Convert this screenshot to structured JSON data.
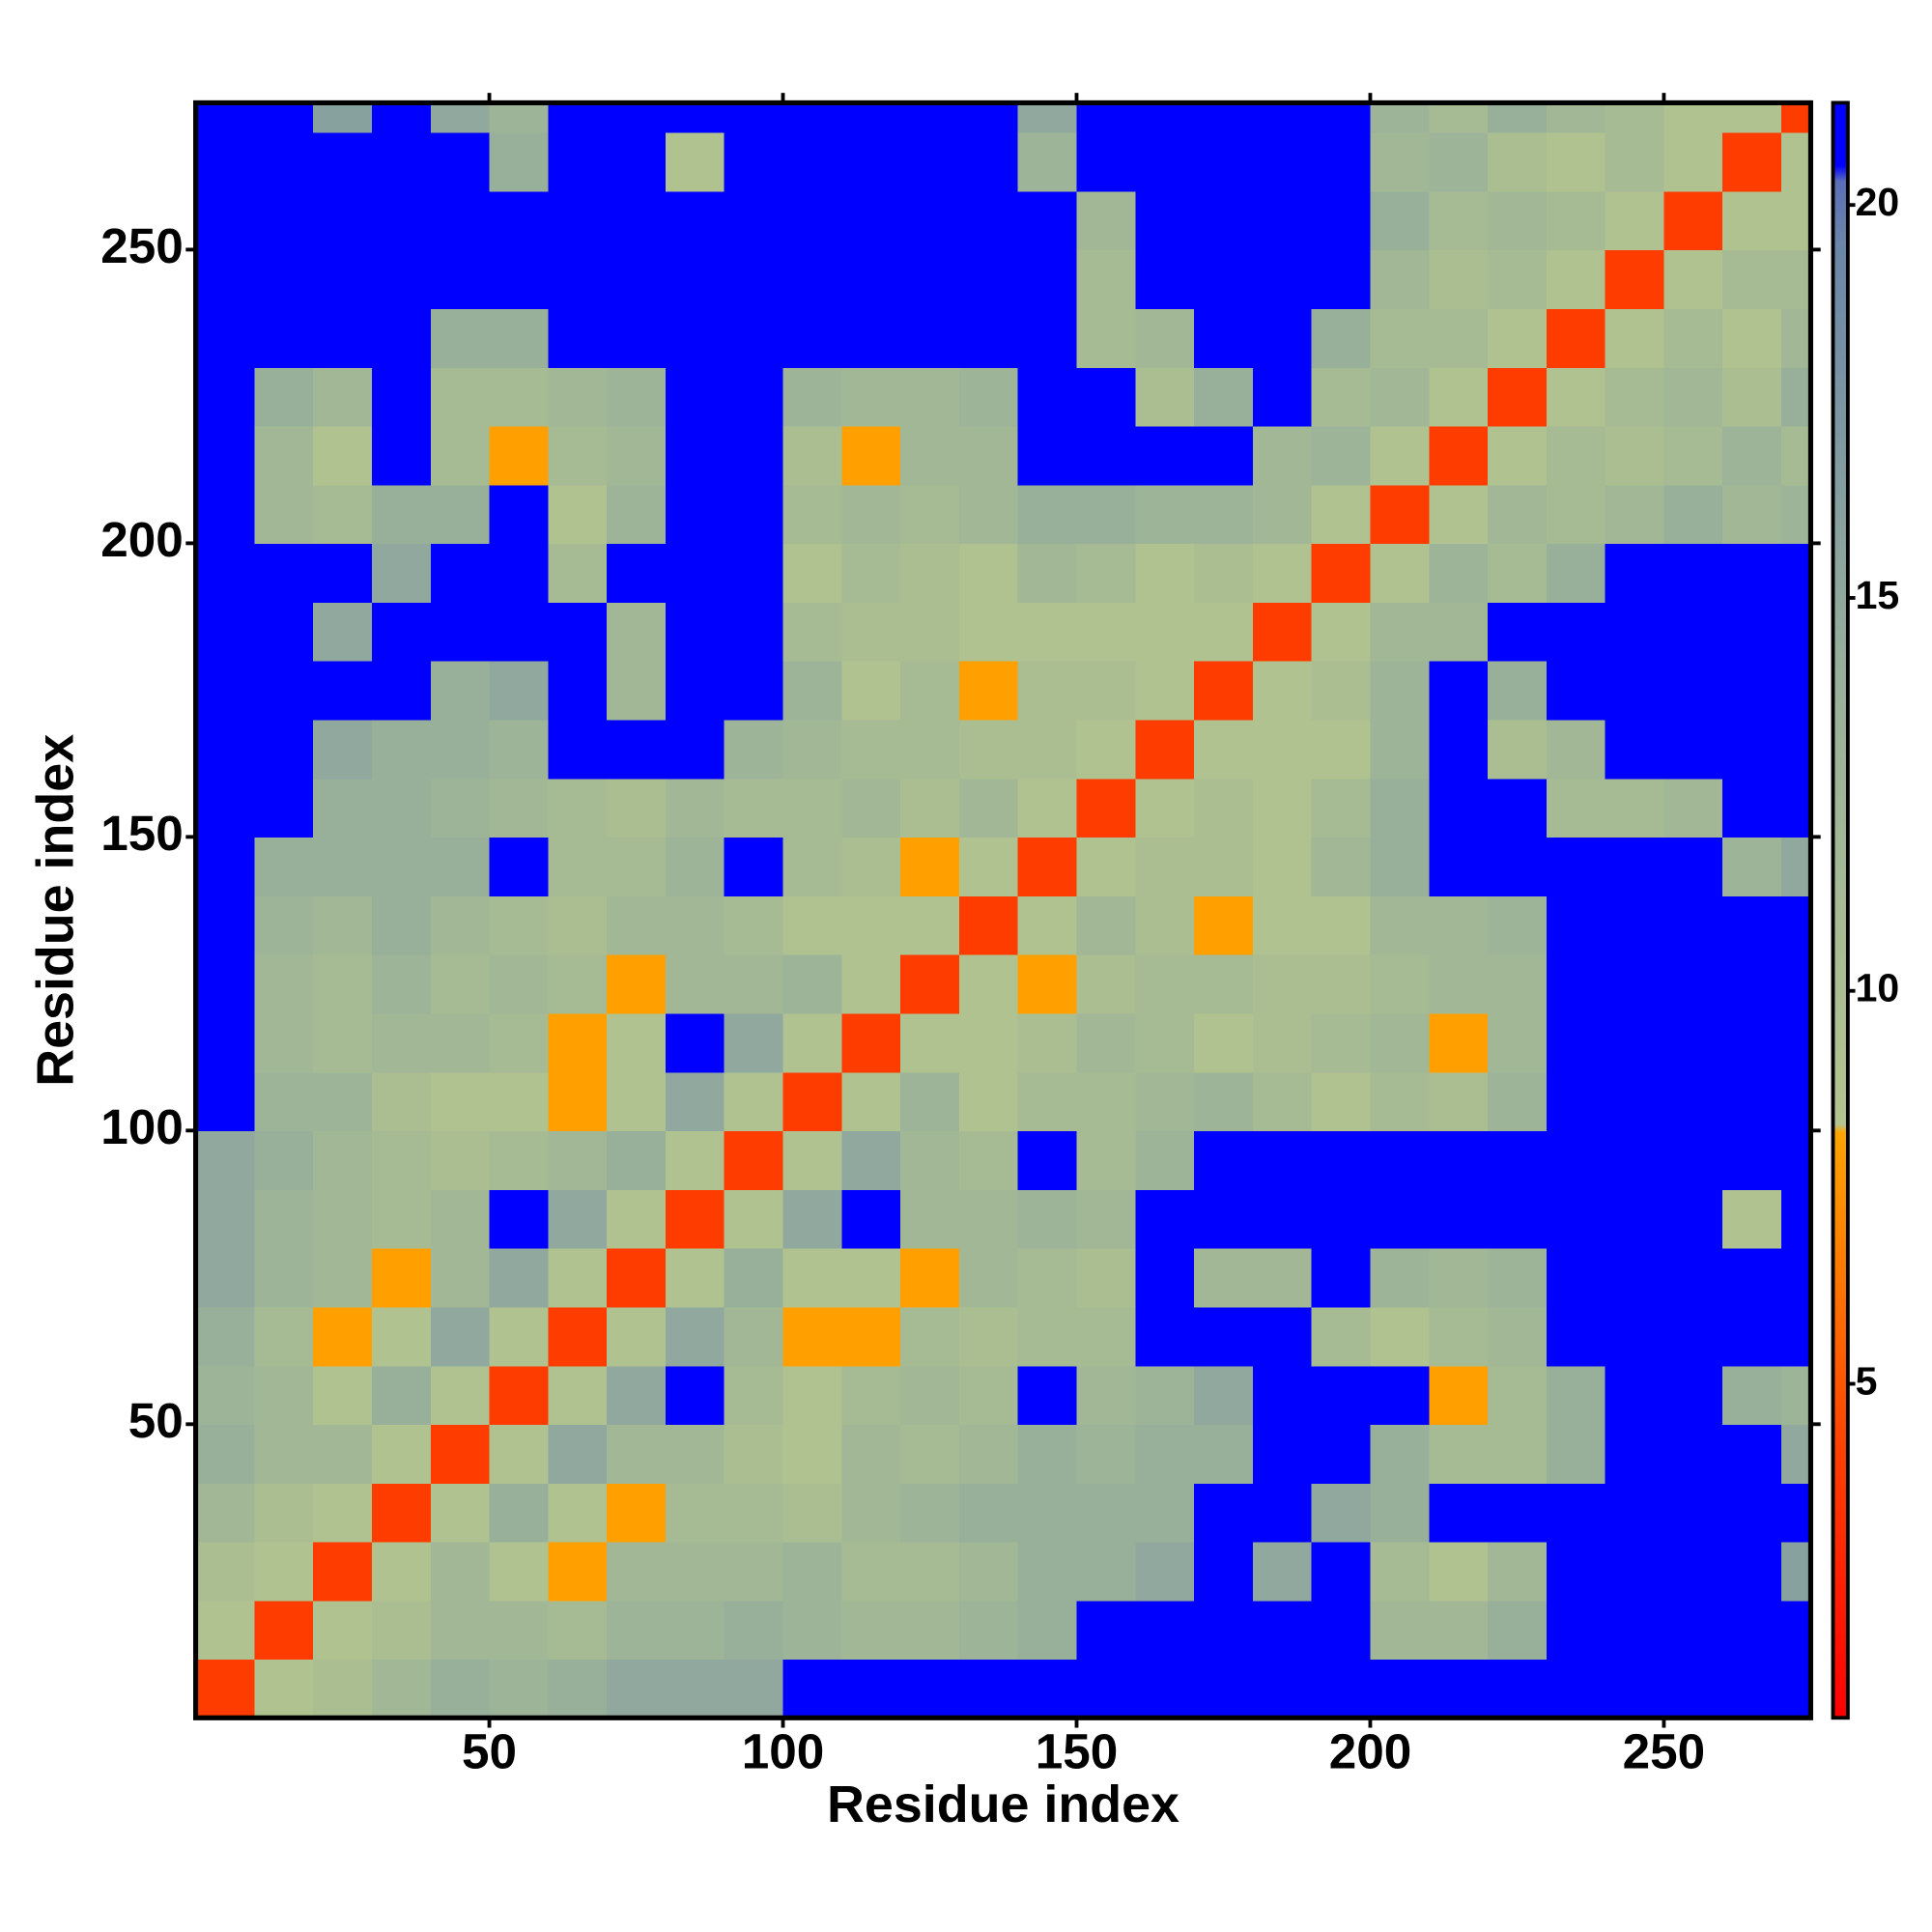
{
  "chart_data": {
    "type": "heatmap",
    "xlabel": "Residue index",
    "ylabel": "Residue index",
    "xlim": [
      0,
      275
    ],
    "ylim": [
      0,
      275
    ],
    "xticks": [
      50,
      100,
      150,
      200,
      250
    ],
    "yticks": [
      50,
      100,
      150,
      200,
      250
    ],
    "xbins": [
      0,
      10,
      20,
      30,
      40,
      50,
      60,
      70,
      80,
      90,
      100,
      110,
      120,
      130,
      140,
      150,
      160,
      170,
      180,
      190,
      200,
      210,
      220,
      230,
      240,
      250,
      260,
      270,
      275
    ],
    "ybins": [
      0,
      10,
      20,
      30,
      40,
      50,
      60,
      70,
      80,
      90,
      100,
      110,
      120,
      130,
      140,
      150,
      160,
      170,
      180,
      190,
      200,
      210,
      220,
      230,
      240,
      250,
      260,
      270,
      275
    ],
    "z": [
      [
        4,
        9,
        10,
        12,
        14,
        13,
        14,
        15,
        15,
        15,
        22,
        22,
        22,
        22,
        22,
        22,
        22,
        22,
        22,
        22,
        22,
        22,
        22,
        22,
        22,
        22,
        22,
        22
      ],
      [
        9,
        4,
        9,
        10,
        12,
        12,
        11,
        13,
        13,
        14,
        13,
        12,
        12,
        13,
        14,
        22,
        22,
        22,
        22,
        22,
        12,
        12,
        14,
        22,
        22,
        22,
        22,
        22
      ],
      [
        10,
        9,
        4,
        9,
        12,
        9,
        8,
        12,
        12,
        12,
        13,
        11,
        11,
        12,
        14,
        14,
        15,
        22,
        15,
        22,
        11,
        9,
        12,
        22,
        22,
        22,
        22,
        16
      ],
      [
        12,
        10,
        9,
        4,
        9,
        14,
        9,
        8,
        11,
        11,
        10,
        12,
        13,
        14,
        14,
        14,
        14,
        22,
        22,
        15,
        14,
        22,
        22,
        22,
        22,
        22,
        22,
        22
      ],
      [
        14,
        12,
        12,
        9,
        4,
        9,
        15,
        12,
        12,
        10,
        9,
        12,
        11,
        12,
        14,
        13,
        14,
        14,
        22,
        22,
        14,
        11,
        11,
        14,
        22,
        22,
        22,
        15
      ],
      [
        13,
        12,
        9,
        14,
        9,
        4,
        9,
        15,
        22,
        11,
        9,
        11,
        12,
        11,
        22,
        12,
        13,
        15,
        22,
        22,
        22,
        8,
        11,
        14,
        22,
        22,
        14,
        13
      ],
      [
        14,
        11,
        8,
        9,
        15,
        9,
        4,
        9,
        15,
        12,
        8,
        8,
        11,
        10,
        11,
        11,
        22,
        22,
        22,
        11,
        9,
        11,
        12,
        22,
        22,
        22,
        22,
        22
      ],
      [
        15,
        13,
        12,
        8,
        12,
        15,
        9,
        4,
        9,
        14,
        9,
        9,
        8,
        12,
        11,
        10,
        22,
        12,
        12,
        22,
        13,
        12,
        13,
        22,
        22,
        22,
        22,
        22
      ],
      [
        15,
        13,
        12,
        11,
        12,
        22,
        15,
        9,
        4,
        9,
        15,
        22,
        12,
        12,
        13,
        12,
        22,
        22,
        22,
        22,
        22,
        22,
        22,
        22,
        22,
        22,
        9,
        22
      ],
      [
        15,
        14,
        12,
        11,
        10,
        11,
        12,
        14,
        9,
        4,
        9,
        15,
        12,
        11,
        22,
        11,
        13,
        22,
        22,
        22,
        22,
        22,
        22,
        22,
        22,
        22,
        22,
        22
      ],
      [
        22,
        13,
        13,
        10,
        9,
        9,
        8,
        9,
        15,
        9,
        4,
        9,
        13,
        9,
        11,
        11,
        12,
        13,
        11,
        9,
        11,
        10,
        13,
        22,
        22,
        22,
        22,
        22
      ],
      [
        22,
        12,
        11,
        12,
        12,
        11,
        8,
        9,
        22,
        15,
        9,
        4,
        9,
        9,
        10,
        12,
        11,
        9,
        10,
        11,
        12,
        8,
        12,
        22,
        22,
        22,
        22,
        22
      ],
      [
        22,
        12,
        11,
        13,
        11,
        12,
        11,
        8,
        12,
        12,
        13,
        9,
        4,
        9,
        8,
        10,
        11,
        11,
        10,
        10,
        11,
        12,
        12,
        22,
        22,
        22,
        22,
        22
      ],
      [
        22,
        13,
        12,
        14,
        12,
        11,
        10,
        12,
        12,
        11,
        9,
        9,
        9,
        4,
        9,
        12,
        10,
        8,
        9,
        9,
        12,
        12,
        13,
        22,
        22,
        22,
        22,
        22
      ],
      [
        22,
        14,
        14,
        14,
        14,
        22,
        11,
        11,
        13,
        22,
        11,
        10,
        8,
        9,
        4,
        9,
        10,
        10,
        9,
        12,
        14,
        22,
        22,
        22,
        22,
        22,
        13,
        15
      ],
      [
        22,
        22,
        14,
        14,
        13,
        12,
        11,
        10,
        12,
        11,
        11,
        12,
        10,
        12,
        9,
        4,
        9,
        10,
        9,
        11,
        14,
        22,
        22,
        11,
        11,
        12,
        22,
        22
      ],
      [
        22,
        22,
        15,
        14,
        14,
        13,
        22,
        22,
        22,
        13,
        12,
        11,
        11,
        10,
        10,
        9,
        4,
        9,
        9,
        9,
        13,
        22,
        10,
        12,
        22,
        22,
        22,
        22
      ],
      [
        22,
        22,
        22,
        22,
        14,
        15,
        22,
        12,
        22,
        22,
        13,
        9,
        11,
        8,
        10,
        10,
        9,
        4,
        9,
        10,
        13,
        22,
        14,
        22,
        22,
        22,
        22,
        22
      ],
      [
        22,
        22,
        15,
        22,
        22,
        22,
        22,
        12,
        22,
        22,
        11,
        10,
        10,
        9,
        9,
        9,
        9,
        9,
        4,
        9,
        12,
        12,
        22,
        22,
        22,
        22,
        22,
        22
      ],
      [
        22,
        22,
        22,
        15,
        22,
        22,
        11,
        22,
        22,
        22,
        9,
        11,
        10,
        9,
        12,
        11,
        9,
        10,
        9,
        4,
        9,
        13,
        11,
        14,
        22,
        22,
        22,
        22
      ],
      [
        22,
        12,
        11,
        14,
        14,
        22,
        9,
        13,
        22,
        22,
        11,
        12,
        11,
        12,
        14,
        14,
        13,
        13,
        12,
        9,
        4,
        9,
        12,
        11,
        12,
        14,
        12,
        13
      ],
      [
        22,
        12,
        9,
        22,
        11,
        8,
        11,
        12,
        22,
        22,
        10,
        8,
        12,
        12,
        22,
        22,
        22,
        22,
        12,
        13,
        9,
        4,
        9,
        11,
        10,
        11,
        13,
        11
      ],
      [
        22,
        14,
        12,
        22,
        11,
        11,
        12,
        13,
        22,
        22,
        13,
        12,
        12,
        13,
        22,
        22,
        10,
        14,
        22,
        11,
        12,
        9,
        4,
        9,
        11,
        12,
        10,
        14
      ],
      [
        22,
        22,
        22,
        22,
        14,
        14,
        22,
        22,
        22,
        22,
        22,
        22,
        22,
        22,
        22,
        11,
        12,
        22,
        22,
        14,
        11,
        11,
        9,
        4,
        9,
        11,
        9,
        12
      ],
      [
        22,
        22,
        22,
        22,
        22,
        22,
        22,
        22,
        22,
        22,
        22,
        22,
        22,
        22,
        22,
        11,
        22,
        22,
        22,
        22,
        12,
        10,
        11,
        9,
        4,
        9,
        11,
        11
      ],
      [
        22,
        22,
        22,
        22,
        22,
        22,
        22,
        22,
        22,
        22,
        22,
        22,
        22,
        22,
        22,
        12,
        22,
        22,
        22,
        22,
        14,
        11,
        12,
        11,
        9,
        4,
        9,
        9
      ],
      [
        22,
        22,
        22,
        22,
        22,
        14,
        22,
        22,
        9,
        22,
        22,
        22,
        22,
        22,
        13,
        22,
        22,
        22,
        22,
        22,
        12,
        13,
        10,
        9,
        11,
        9,
        4,
        9
      ],
      [
        22,
        22,
        16,
        22,
        15,
        13,
        22,
        22,
        22,
        22,
        22,
        22,
        22,
        22,
        15,
        22,
        22,
        22,
        22,
        22,
        13,
        11,
        14,
        12,
        11,
        9,
        9,
        4
      ]
    ],
    "colorbar": {
      "clim": [
        0.75,
        21.3
      ],
      "ticks": [
        5,
        10,
        15,
        20
      ],
      "stops": [
        [
          0.75,
          "#ff0000"
        ],
        [
          4,
          "#ff3c00"
        ],
        [
          8.2,
          "#ffa500"
        ],
        [
          8.3,
          "#b3c48f"
        ],
        [
          14,
          "#98b09a"
        ],
        [
          19.5,
          "#6a86a8"
        ],
        [
          20.3,
          "#5a6fb8"
        ],
        [
          20.5,
          "#0000ff"
        ],
        [
          21.3,
          "#0000ff"
        ]
      ]
    }
  }
}
